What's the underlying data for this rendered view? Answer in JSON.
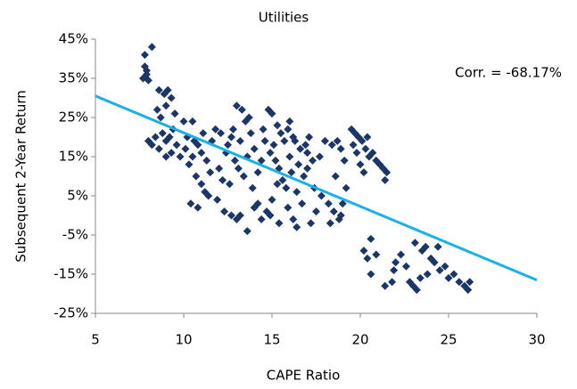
{
  "chart_data": {
    "type": "scatter",
    "title": "Utilities",
    "x_label": "CAPE Ratio",
    "y_label": "Subsequent 2-Year Return",
    "annotation": "Corr. = -68.17%",
    "color": "#1c3668",
    "x": [
      7.8,
      7.9,
      7.7,
      8.0,
      7.8,
      8.2,
      7.9,
      8.6,
      8.9,
      9.1,
      9.3,
      9.0,
      8.5,
      9.5,
      8.7,
      8.0,
      8.2,
      8.4,
      8.8,
      9.0,
      9.2,
      9.4,
      8.6,
      9.6,
      9.8,
      9.0,
      9.3,
      10,
      10.5,
      10.2,
      10.8,
      11,
      10.5,
      11.3,
      11.6,
      11.8,
      10.3,
      10.7,
      11,
      11.4,
      11.2,
      10.4,
      10.8,
      12,
      12.2,
      11.9,
      11.5,
      10.1,
      10.6,
      11.1,
      12.4,
      12.1,
      12.5,
      12.8,
      13,
      13.3,
      13.5,
      12.7,
      13.2,
      13.8,
      14,
      13.6,
      12.9,
      13.1,
      13.4,
      12.6,
      12.3,
      12.7,
      13,
      13.2,
      13.6,
      14,
      13.9,
      14.2,
      14.4,
      14.6,
      13.7,
      14.8,
      15,
      15.3,
      15.5,
      15.7,
      15.9,
      14.9,
      15.2,
      15.4,
      15.6,
      15.8,
      15,
      14.7,
      14.4,
      14.9,
      15.4,
      15.9,
      16,
      15.1,
      14.5,
      16.2,
      16.1,
      15.3,
      16,
      14.2,
      16.3,
      16.6,
      16.9,
      17.1,
      16.5,
      16.8,
      17,
      17.3,
      16.4,
      16.7,
      16.2,
      16.4,
      17.5,
      17.2,
      17.7,
      17.4,
      17.8,
      17,
      18,
      18.4,
      18.7,
      18.2,
      18.5,
      18.8,
      18.9,
      18.3,
      19,
      19.2,
      18.6,
      19.1,
      18.9,
      19.5,
      19.7,
      19.9,
      20.1,
      20.3,
      20.5,
      20.7,
      20.9,
      21.1,
      21.3,
      21.4,
      21.5,
      19.8,
      20,
      20.2,
      19.6,
      20.4,
      20.2,
      20.4,
      20.6,
      21.4,
      21.8,
      22,
      22.3,
      22.6,
      23,
      23.2,
      23.4,
      23.5,
      23.7,
      24,
      24.2,
      24.5,
      24.8,
      25,
      25.3,
      25.6,
      25.9,
      26.1,
      26.2,
      23.8,
      22.8,
      24.4,
      23.1,
      21.9,
      20.9,
      20.6
    ],
    "values": [
      38,
      36,
      35,
      34.5,
      41,
      43,
      37,
      32,
      31,
      32,
      30,
      28,
      27,
      26,
      25,
      19,
      18,
      20,
      21,
      19,
      20,
      22,
      17,
      18,
      15,
      15,
      16,
      24,
      24,
      20,
      18,
      16,
      15,
      14,
      19,
      22,
      13,
      10,
      8,
      5,
      6,
      3,
      2,
      12,
      9,
      4,
      11,
      17,
      19,
      21,
      16,
      21,
      18,
      22,
      28,
      27,
      24,
      20,
      19,
      21,
      17,
      15,
      14,
      12,
      10,
      8,
      1,
      0,
      -1,
      0,
      -4,
      2,
      7,
      11,
      14,
      19,
      25,
      27,
      26,
      23,
      21,
      19,
      22,
      16,
      14,
      12,
      9,
      7,
      4,
      1,
      -1,
      0,
      -2,
      2,
      15,
      18,
      22,
      20,
      11,
      8,
      24,
      3,
      19,
      17,
      18,
      20,
      13,
      10,
      12,
      14,
      6,
      3,
      -1,
      -3,
      1,
      -2,
      15,
      7,
      5,
      16,
      19,
      18,
      19,
      3,
      1,
      -1,
      0,
      -2,
      3,
      7,
      10,
      14,
      17,
      22,
      21,
      20,
      19,
      17,
      15,
      16,
      14,
      13,
      12,
      9,
      11,
      16,
      13,
      11,
      18,
      20,
      -9,
      -11,
      -15,
      -18,
      -17,
      -12,
      -10,
      -13,
      -18,
      -19,
      -16,
      -9,
      -8,
      -11,
      -12,
      -14,
      -13,
      -16,
      -15,
      -17,
      -18,
      -19,
      -17,
      -15,
      -17,
      -8,
      -7,
      -14,
      -10,
      -6
    ],
    "trendline": {
      "x": [
        5,
        30
      ],
      "y": [
        30.5,
        -16.5
      ],
      "color": "#1ab0e8"
    },
    "xlim": [
      5,
      30
    ],
    "xticks": [
      5,
      10,
      15,
      20,
      25,
      30
    ],
    "ylim": [
      -25,
      45
    ],
    "yticks": [
      {
        "value": -25,
        "label": "-25%"
      },
      {
        "value": -15,
        "label": "-15%"
      },
      {
        "value": -5,
        "label": "-5%"
      },
      {
        "value": 5,
        "label": "5%"
      },
      {
        "value": 15,
        "label": "15%"
      },
      {
        "value": 25,
        "label": "25%"
      },
      {
        "value": 35,
        "label": "35%"
      },
      {
        "value": 45,
        "label": "45%"
      }
    ]
  }
}
